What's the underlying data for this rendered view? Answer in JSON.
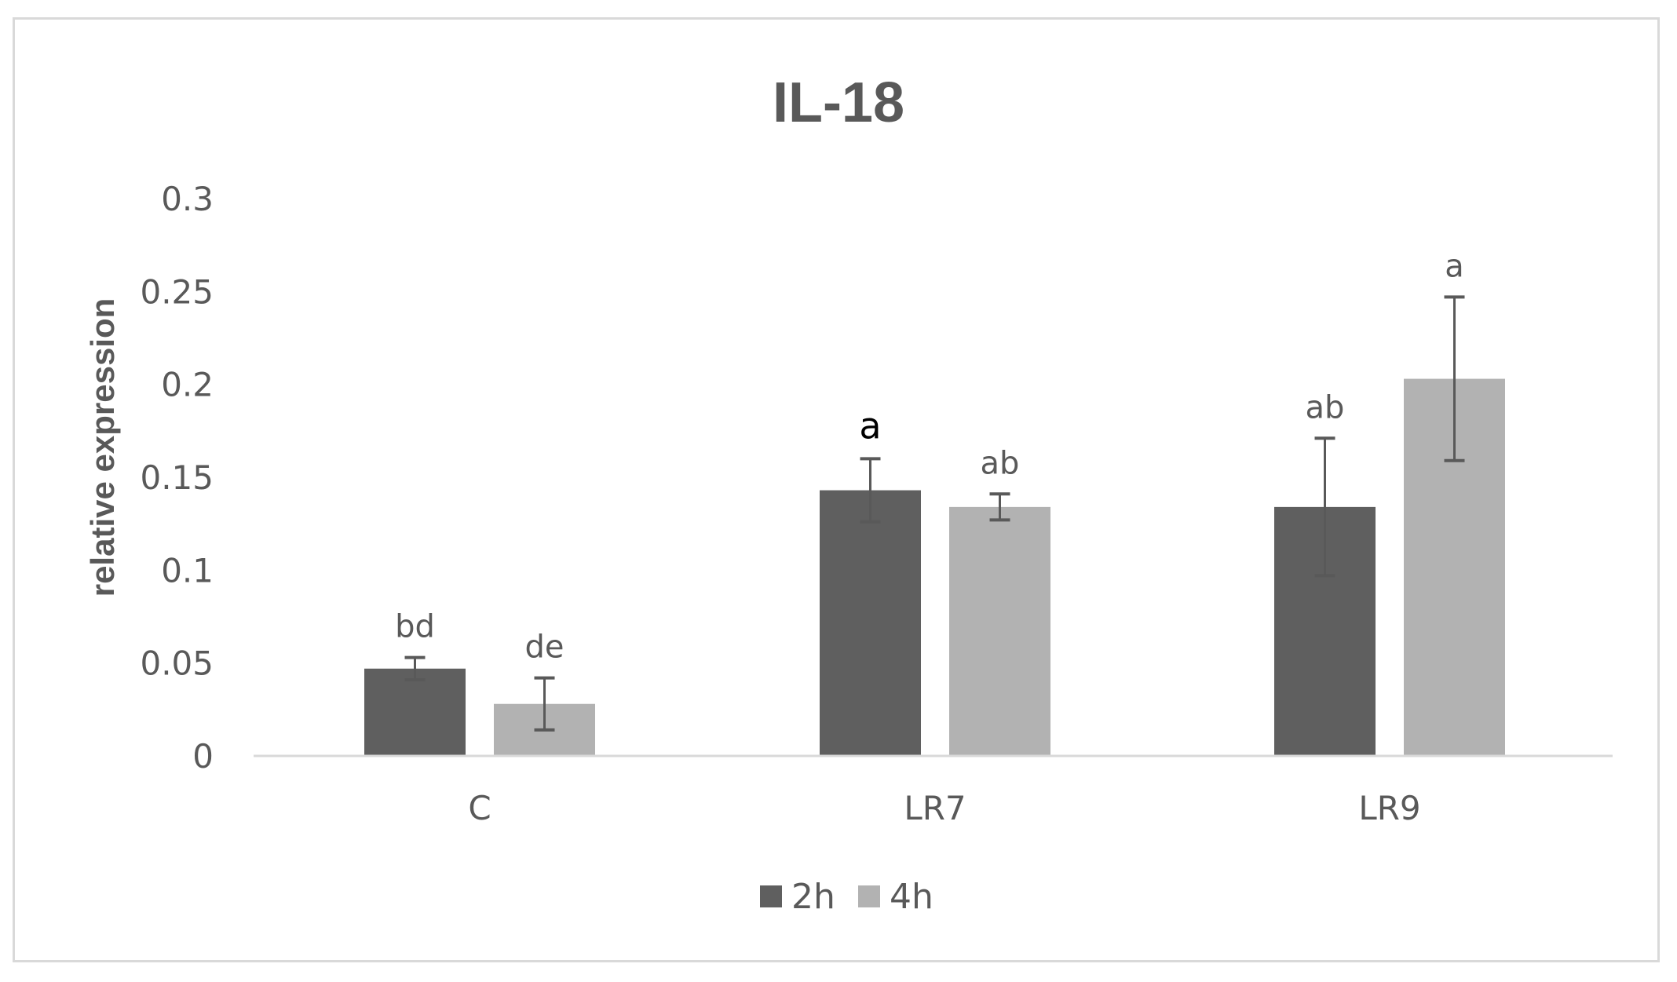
{
  "chart_data": {
    "type": "bar",
    "title": "IL-18",
    "ylabel": "relative expression",
    "xlabel": "",
    "ylim": [
      0,
      0.3
    ],
    "yticks": [
      0,
      0.05,
      0.1,
      0.15,
      0.2,
      0.25,
      0.3
    ],
    "ytick_labels": [
      "0",
      "0.05",
      "0.1",
      "0.15",
      "0.2",
      "0.25",
      "0.3"
    ],
    "categories": [
      "C",
      "LR7",
      "LR9"
    ],
    "series": [
      {
        "name": "2h",
        "color": "#5f5f5f",
        "values": [
          0.047,
          0.143,
          0.134
        ],
        "errors": [
          0.006,
          0.017,
          0.037
        ],
        "significance": [
          "bd",
          "a",
          "ab"
        ]
      },
      {
        "name": "4h",
        "color": "#b2b2b2",
        "values": [
          0.028,
          0.134,
          0.203
        ],
        "errors": [
          0.014,
          0.007,
          0.044
        ],
        "significance": [
          "de",
          "ab",
          "a"
        ]
      }
    ],
    "grid": false,
    "legend": "bottom"
  }
}
